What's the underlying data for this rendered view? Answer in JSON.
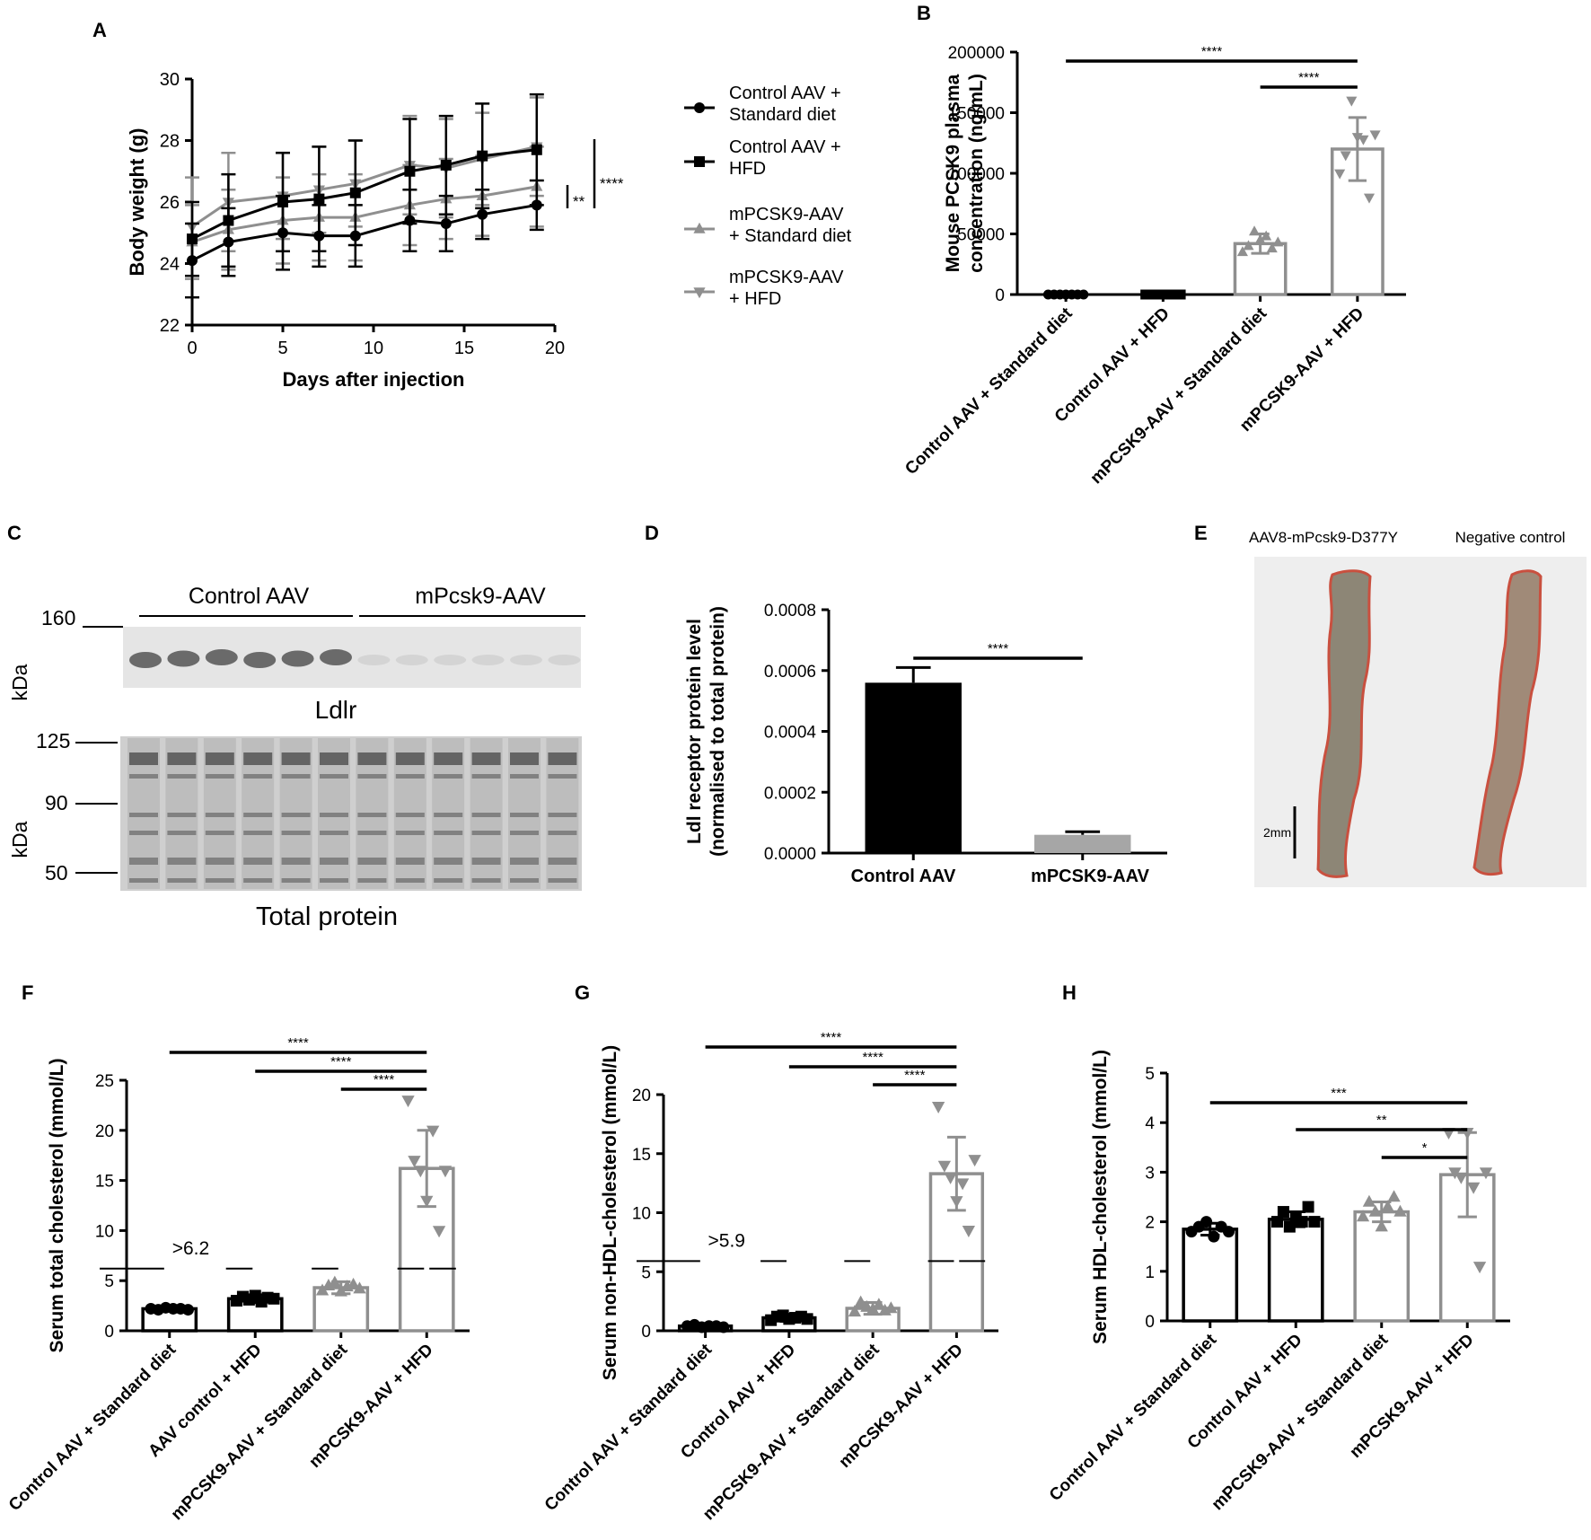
{
  "colors": {
    "black": "#000000",
    "gray": "#8f8f8f",
    "bar_gray": "#a6a6a6",
    "blot_bg": "#e6e6e6",
    "photo_bg": "#eeeeee",
    "aorta_tissue": "#8e8878",
    "aorta_edge": "#c9503f"
  },
  "chart_data": [
    {
      "panel": "A",
      "type": "line",
      "xlabel": "Days after injection",
      "ylabel": "Body weight (g)",
      "xlim": [
        0,
        20
      ],
      "ylim": [
        22,
        30
      ],
      "xticks": [
        "0",
        "5",
        "10",
        "15",
        "20"
      ],
      "yticks": [
        "22",
        "24",
        "26",
        "28",
        "30"
      ],
      "x": [
        0,
        2,
        5,
        7,
        9,
        12,
        14,
        16,
        19
      ],
      "series": [
        {
          "name": "Control AAV + Standard diet",
          "legend": [
            "Control AAV +",
            "Standard diet"
          ],
          "color": "#000000",
          "marker": "circle",
          "values": [
            24.1,
            24.7,
            25.0,
            24.9,
            24.9,
            25.4,
            25.3,
            25.6,
            25.9
          ],
          "errors": [
            1.2,
            1.1,
            1.2,
            1.0,
            1.0,
            1.0,
            0.9,
            0.8,
            0.8
          ]
        },
        {
          "name": "Control AAV + HFD",
          "legend": [
            "Control AAV +",
            "HFD"
          ],
          "color": "#000000",
          "marker": "square",
          "values": [
            24.8,
            25.4,
            26.0,
            26.1,
            26.3,
            27.0,
            27.2,
            27.5,
            27.7
          ],
          "errors": [
            1.2,
            1.5,
            1.6,
            1.7,
            1.7,
            1.7,
            1.6,
            1.7,
            1.8
          ]
        },
        {
          "name": "mPCSK9-AAV + Standard diet",
          "legend": [
            "mPCSK9-AAV",
            "+ Standard diet"
          ],
          "color": "#8f8f8f",
          "marker": "triangle-up",
          "values": [
            24.7,
            25.1,
            25.4,
            25.5,
            25.5,
            25.9,
            26.1,
            26.2,
            26.5
          ],
          "errors": [
            1.2,
            1.3,
            1.4,
            1.4,
            1.4,
            1.3,
            1.3,
            1.3,
            1.3
          ]
        },
        {
          "name": "mPCSK9-AAV + HFD",
          "legend": [
            "mPCSK9-AAV",
            "+ HFD"
          ],
          "color": "#8f8f8f",
          "marker": "triangle-down",
          "values": [
            25.2,
            26.0,
            26.2,
            26.4,
            26.6,
            27.2,
            27.1,
            27.4,
            27.8
          ],
          "errors": [
            1.6,
            1.6,
            1.4,
            1.4,
            1.4,
            1.6,
            1.6,
            1.5,
            1.6
          ]
        }
      ],
      "significance": [
        "**",
        "****"
      ]
    },
    {
      "panel": "B",
      "type": "bar",
      "ylabel": [
        "Mouse PCSK9 plasma",
        "concentration (ng/mL)"
      ],
      "ylim": [
        0,
        200000
      ],
      "yticks": [
        "0",
        "50000",
        "100000",
        "150000",
        "200000"
      ],
      "categories": [
        "Control AAV + Standard diet",
        "Control AAV + HFD",
        "mPCSK9-AAV + Standard diet",
        "mPCSK9-AAV + HFD"
      ],
      "values": [
        0,
        0,
        42000,
        120000
      ],
      "errors": [
        0,
        0,
        8000,
        26000
      ],
      "points": [
        [
          0,
          0,
          0,
          0,
          0,
          0,
          0
        ],
        [
          0,
          0,
          0,
          0,
          0,
          0,
          0,
          0
        ],
        [
          35000,
          40000,
          52000,
          45000,
          48000,
          38000,
          43000
        ],
        [
          100000,
          115000,
          160000,
          130000,
          128000,
          80000,
          132000
        ]
      ],
      "significance": [
        {
          "from": 0,
          "to": 3,
          "label": "****"
        },
        {
          "from": 2,
          "to": 3,
          "label": "****"
        }
      ]
    },
    {
      "panel": "D",
      "type": "bar",
      "ylabel": [
        "Ldl receptor protein level",
        "(normalised to total protein)"
      ],
      "ylim": [
        0,
        0.0008
      ],
      "yticks": [
        "0.0000",
        "0.0002",
        "0.0004",
        "0.0006",
        "0.0008"
      ],
      "categories": [
        "Control AAV",
        "mPCSK9-AAV"
      ],
      "values": [
        0.00056,
        6e-05
      ],
      "errors": [
        5e-05,
        1e-05
      ],
      "significance": [
        {
          "from": 0,
          "to": 1,
          "label": "****"
        }
      ]
    },
    {
      "panel": "F",
      "type": "bar",
      "ylabel": "Serum total cholesterol (mmol/L)",
      "ylim": [
        0,
        25
      ],
      "yticks": [
        "0",
        "5",
        "10",
        "15",
        "20",
        "25"
      ],
      "categories": [
        "Control AAV + Standard diet",
        "AAV control + HFD",
        "mPCSK9-AAV + Standard diet",
        "mPCSK9-AAV + HFD"
      ],
      "values": [
        2.2,
        3.2,
        4.3,
        16.2
      ],
      "errors": [
        0.2,
        0.4,
        0.6,
        3.8
      ],
      "threshold": {
        "value": 6.2,
        "label": ">6.2"
      },
      "points": [
        [
          2.2,
          2.1,
          2.3,
          2.2,
          2.2,
          2.1
        ],
        [
          3.0,
          3.4,
          3.1,
          3.5,
          2.9,
          3.3,
          3.2
        ],
        [
          4.0,
          4.5,
          4.8,
          3.9,
          4.4,
          4.6,
          4.2
        ],
        [
          23.0,
          17.0,
          16.0,
          13.0,
          20.0,
          10.0,
          16.0
        ]
      ],
      "significance": [
        {
          "from": 0,
          "to": 3,
          "label": "****"
        },
        {
          "from": 1,
          "to": 3,
          "label": "****"
        },
        {
          "from": 2,
          "to": 3,
          "label": "****"
        }
      ]
    },
    {
      "panel": "G",
      "type": "bar",
      "ylabel": "Serum non-HDL-cholesterol (mmol/L)",
      "ylim": [
        0,
        20
      ],
      "yticks": [
        "0",
        "5",
        "10",
        "15",
        "20"
      ],
      "categories": [
        "Control AAV + Standard diet",
        "Control AAV + HFD",
        "mPCSK9-AAV + Standard diet",
        "mPCSK9-AAV + HFD"
      ],
      "values": [
        0.4,
        1.1,
        1.9,
        13.3
      ],
      "errors": [
        0.1,
        0.3,
        0.5,
        3.1
      ],
      "threshold": {
        "value": 5.9,
        "label": ">5.9"
      },
      "points": [
        [
          0.4,
          0.5,
          0.3,
          0.4,
          0.4,
          0.3
        ],
        [
          0.9,
          1.2,
          1.3,
          1.0,
          1.1,
          1.2,
          1.0
        ],
        [
          1.6,
          2.4,
          2.0,
          1.8,
          2.2,
          1.7,
          1.9
        ],
        [
          19.0,
          14.0,
          13.0,
          11.0,
          12.5,
          8.5,
          14.5
        ]
      ],
      "significance": [
        {
          "from": 0,
          "to": 3,
          "label": "****"
        },
        {
          "from": 1,
          "to": 3,
          "label": "****"
        },
        {
          "from": 2,
          "to": 3,
          "label": "****"
        }
      ]
    },
    {
      "panel": "H",
      "type": "bar",
      "ylabel": "Serum HDL-cholesterol (mmol/L)",
      "ylim": [
        0,
        5
      ],
      "yticks": [
        "0",
        "1",
        "2",
        "3",
        "4",
        "5"
      ],
      "categories": [
        "Control AAV + Standard diet",
        "Control AAV + HFD",
        "mPCSK9-AAV + Standard diet",
        "mPCSK9-AAV + HFD"
      ],
      "values": [
        1.85,
        2.05,
        2.2,
        2.95
      ],
      "errors": [
        0.12,
        0.15,
        0.2,
        0.85
      ],
      "points": [
        [
          1.8,
          1.9,
          2.0,
          1.7,
          1.9,
          1.8
        ],
        [
          2.0,
          2.2,
          1.9,
          2.1,
          2.0,
          2.3,
          2.0
        ],
        [
          2.1,
          2.4,
          2.2,
          1.9,
          2.3,
          2.5,
          2.2
        ],
        [
          3.8,
          3.0,
          2.9,
          3.8,
          2.7,
          1.1,
          3.0
        ]
      ],
      "significance": [
        {
          "from": 0,
          "to": 3,
          "label": "***"
        },
        {
          "from": 1,
          "to": 3,
          "label": "**"
        },
        {
          "from": 2,
          "to": 3,
          "label": "*"
        }
      ]
    }
  ],
  "panel_labels": {
    "a": "A",
    "b": "B",
    "c": "C",
    "d": "D",
    "e": "E",
    "f": "F",
    "g": "G",
    "h": "H"
  },
  "blot": {
    "group1": "Control AAV",
    "group2": "mPcsk9-AAV",
    "mw_160": "160",
    "mw_125": "125",
    "mw_90": "90",
    "mw_50": "50",
    "unit": "kDa",
    "ldlr_label": "Ldlr",
    "total_label": "Total protein"
  },
  "photo": {
    "left_label": "AAV8-mPcsk9-D377Y",
    "right_label": "Negative control",
    "scale_label": "2mm"
  }
}
